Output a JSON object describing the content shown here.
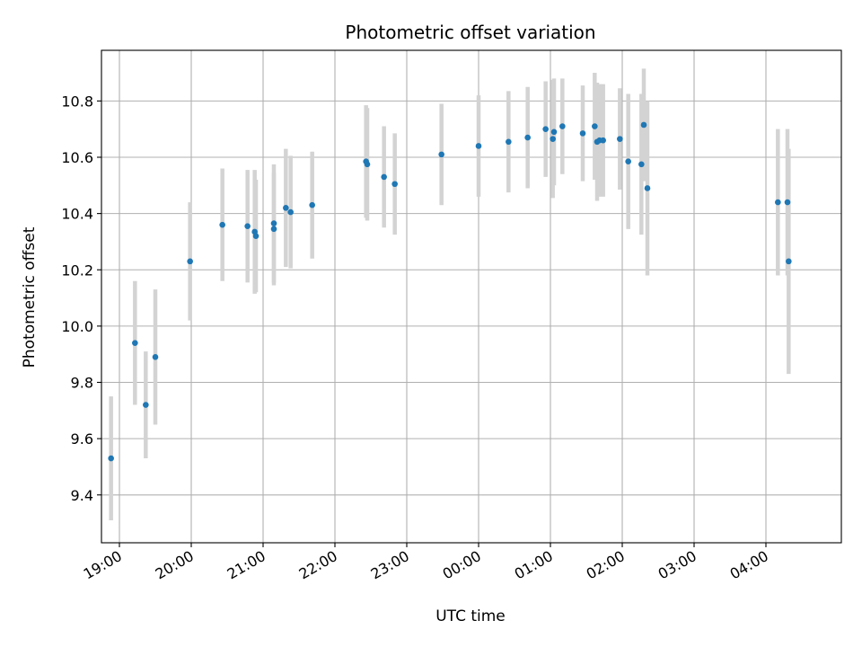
{
  "chart_data": {
    "type": "scatter",
    "title": "Photometric offset variation",
    "xlabel": "UTC time",
    "ylabel": "Photometric offset",
    "grid": true,
    "x_tick_labels": [
      "19:00",
      "20:00",
      "21:00",
      "22:00",
      "23:00",
      "00:00",
      "01:00",
      "02:00",
      "03:00",
      "04:00"
    ],
    "y_tick_labels": [
      "9.4",
      "9.6",
      "9.8",
      "10.0",
      "10.2",
      "10.4",
      "10.6",
      "10.8"
    ],
    "xlim": [
      "18:45",
      "29:03"
    ],
    "ylim": [
      9.23,
      10.98
    ],
    "colors": {
      "point": "#1f77b4",
      "errorbar": "#d3d3d3",
      "grid": "#b0b0b0"
    },
    "series": [
      {
        "points": [
          {
            "x": "18:53",
            "y": 9.53,
            "err": 0.22
          },
          {
            "x": "19:13",
            "y": 9.94,
            "err": 0.22
          },
          {
            "x": "19:22",
            "y": 9.72,
            "err": 0.19
          },
          {
            "x": "19:30",
            "y": 9.89,
            "err": 0.24
          },
          {
            "x": "19:59",
            "y": 10.23,
            "err": 0.21
          },
          {
            "x": "20:26",
            "y": 10.36,
            "err": 0.2
          },
          {
            "x": "20:47",
            "y": 10.355,
            "err": 0.2
          },
          {
            "x": "20:53",
            "y": 10.335,
            "err": 0.22
          },
          {
            "x": "20:54",
            "y": 10.32,
            "err": 0.2
          },
          {
            "x": "21:09",
            "y": 10.365,
            "err": 0.21
          },
          {
            "x": "21:09",
            "y": 10.345,
            "err": 0.2
          },
          {
            "x": "21:19",
            "y": 10.42,
            "err": 0.21
          },
          {
            "x": "21:23",
            "y": 10.405,
            "err": 0.2
          },
          {
            "x": "21:41",
            "y": 10.43,
            "err": 0.19
          },
          {
            "x": "22:26",
            "y": 10.585,
            "err": 0.2
          },
          {
            "x": "22:27",
            "y": 10.575,
            "err": 0.2
          },
          {
            "x": "22:41",
            "y": 10.53,
            "err": 0.18
          },
          {
            "x": "22:50",
            "y": 10.505,
            "err": 0.18
          },
          {
            "x": "23:29",
            "y": 10.61,
            "err": 0.18
          },
          {
            "x": "24:00",
            "y": 10.64,
            "err": 0.18
          },
          {
            "x": "24:25",
            "y": 10.655,
            "err": 0.18
          },
          {
            "x": "24:41",
            "y": 10.67,
            "err": 0.18
          },
          {
            "x": "24:56",
            "y": 10.7,
            "err": 0.17
          },
          {
            "x": "25:02",
            "y": 10.665,
            "err": 0.21
          },
          {
            "x": "25:03",
            "y": 10.69,
            "err": 0.19
          },
          {
            "x": "25:10",
            "y": 10.71,
            "err": 0.17
          },
          {
            "x": "25:27",
            "y": 10.685,
            "err": 0.17
          },
          {
            "x": "25:37",
            "y": 10.71,
            "err": 0.19
          },
          {
            "x": "25:39",
            "y": 10.655,
            "err": 0.21
          },
          {
            "x": "25:41",
            "y": 10.66,
            "err": 0.2
          },
          {
            "x": "25:44",
            "y": 10.66,
            "err": 0.2
          },
          {
            "x": "25:58",
            "y": 10.665,
            "err": 0.18
          },
          {
            "x": "26:05",
            "y": 10.585,
            "err": 0.24
          },
          {
            "x": "26:16",
            "y": 10.575,
            "err": 0.25
          },
          {
            "x": "26:18",
            "y": 10.715,
            "err": 0.2
          },
          {
            "x": "26:21",
            "y": 10.49,
            "err": 0.31
          },
          {
            "x": "28:10",
            "y": 10.44,
            "err": 0.26
          },
          {
            "x": "28:18",
            "y": 10.44,
            "err": 0.26
          },
          {
            "x": "28:19",
            "y": 10.23,
            "err": 0.4
          }
        ]
      }
    ]
  }
}
